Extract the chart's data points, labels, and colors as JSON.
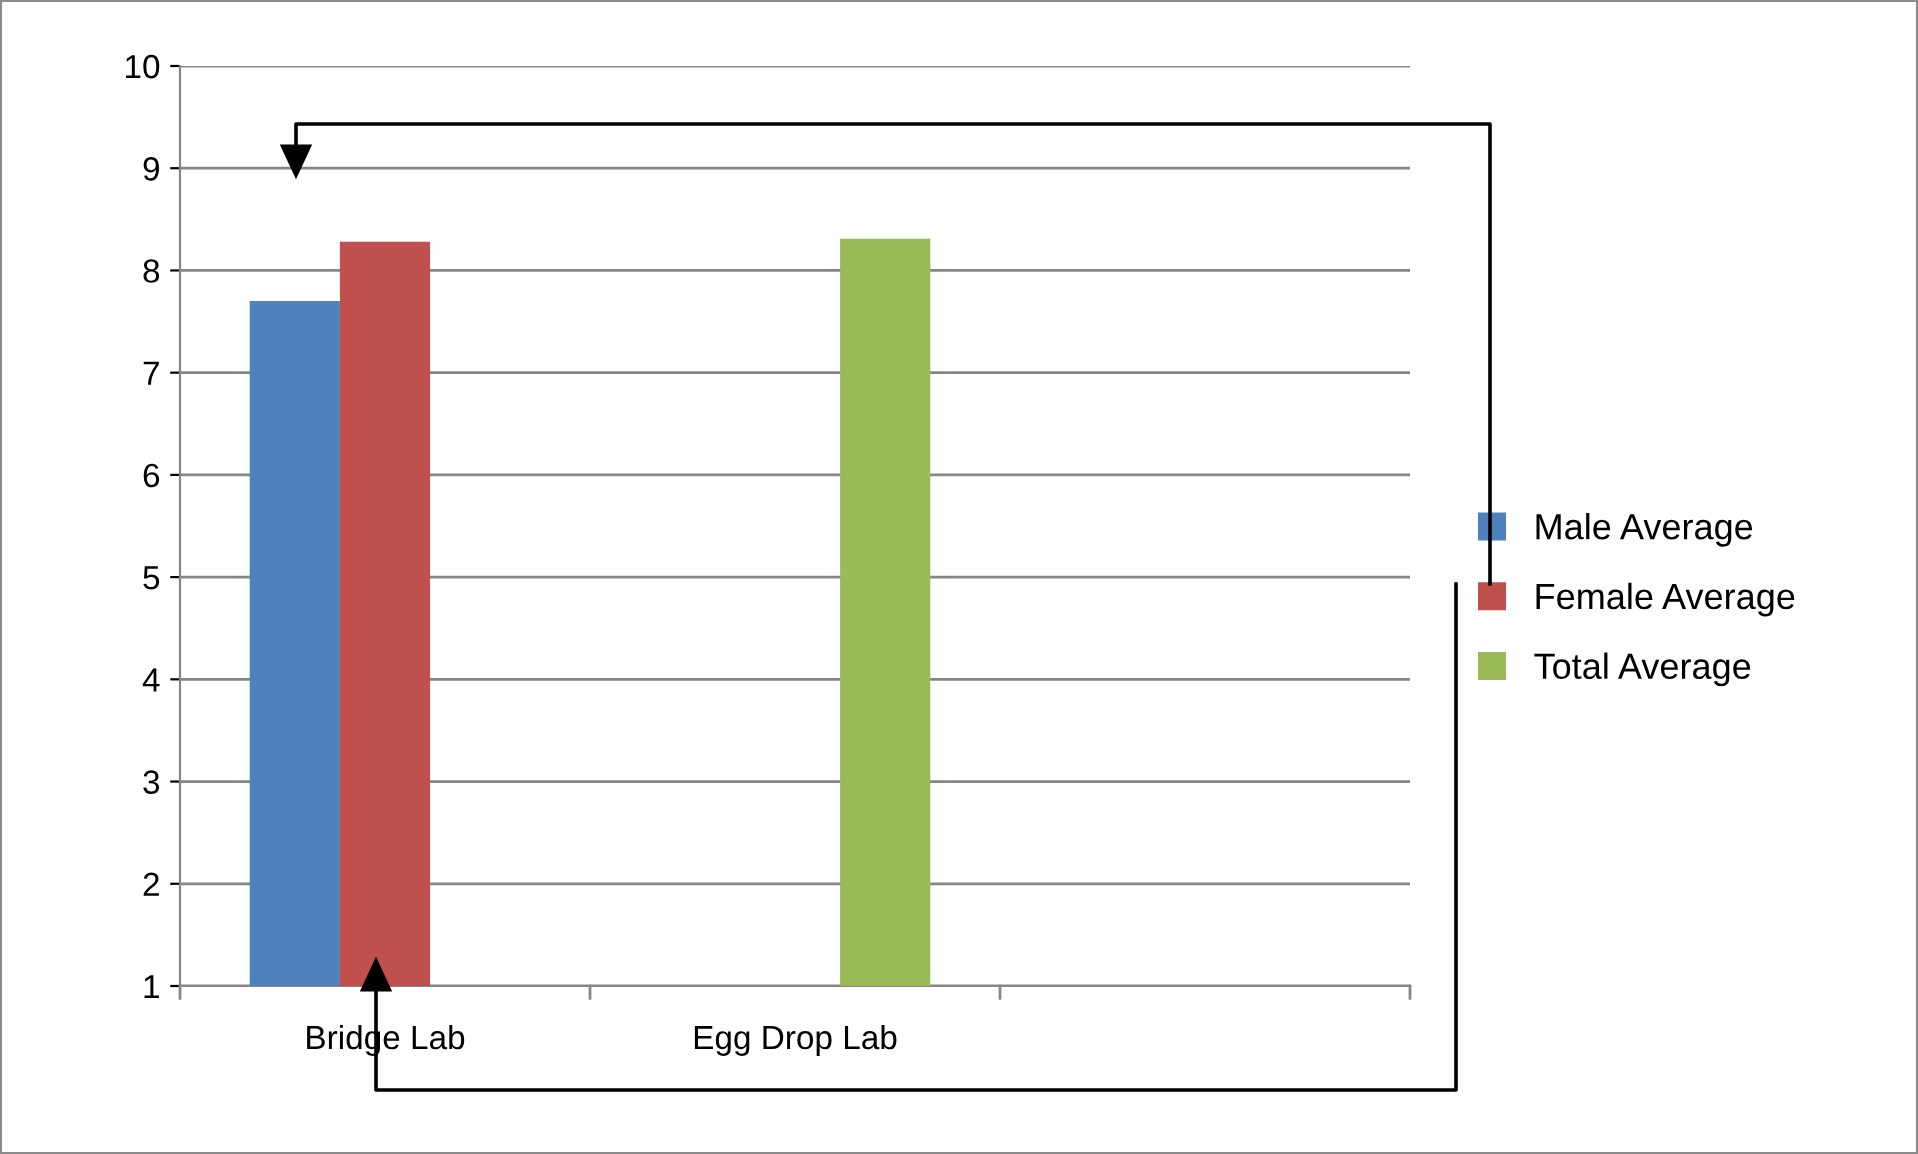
{
  "chart_data": {
    "type": "bar",
    "categories": [
      "Bridge Lab",
      "Egg Drop Lab",
      null
    ],
    "series": [
      {
        "name": "Male Average",
        "color": "#4f81bd",
        "values": [
          7.7,
          null,
          null
        ]
      },
      {
        "name": "Female Average",
        "color": "#c0504d",
        "values": [
          8.28,
          null,
          null
        ]
      },
      {
        "name": "Total Average",
        "color": "#9bbb59",
        "values": [
          null,
          8.31,
          null
        ]
      }
    ],
    "ylim": [
      1,
      10
    ],
    "yticks": [
      1,
      2,
      3,
      4,
      5,
      6,
      7,
      8,
      9,
      10
    ],
    "grid": "y",
    "legend": "right"
  }
}
